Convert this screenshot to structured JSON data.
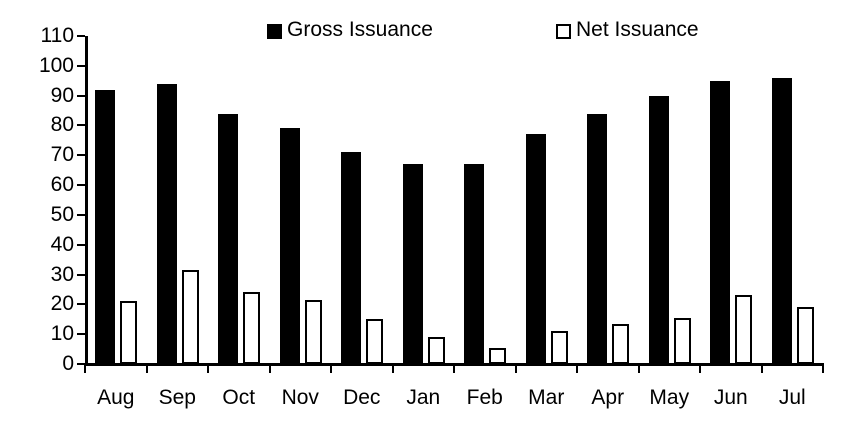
{
  "chart_data": {
    "type": "bar",
    "title": "",
    "xlabel": "",
    "ylabel": "",
    "categories": [
      "Aug",
      "Sep",
      "Oct",
      "Nov",
      "Dec",
      "Jan",
      "Feb",
      "Mar",
      "Apr",
      "May",
      "Jun",
      "Jul"
    ],
    "series": [
      {
        "name": "Gross Issuance",
        "values": [
          92,
          94,
          84,
          79,
          71,
          67,
          67,
          77,
          84,
          90,
          95,
          96
        ],
        "fill": "#000000",
        "stroke": "#000000"
      },
      {
        "name": "Net Issuance",
        "values": [
          21,
          31.5,
          24,
          21.5,
          15,
          9,
          5.5,
          11,
          13.5,
          15.5,
          23,
          19
        ],
        "fill": "#ffffff",
        "stroke": "#000000"
      }
    ],
    "ylim": [
      0,
      110
    ],
    "ytick_step": 10,
    "ytick_labels": [
      "0",
      "10",
      "20",
      "30",
      "40",
      "50",
      "60",
      "70",
      "80",
      "90",
      "100",
      "110"
    ],
    "grid": false,
    "legend_position": "top"
  },
  "legend": {
    "items": [
      {
        "label": "Gross Issuance",
        "swatch": "filled-black-square"
      },
      {
        "label": "Net Issuance",
        "swatch": "outlined-white-square"
      }
    ]
  },
  "colors": {
    "background": "#ffffff",
    "axis": "#000000",
    "gross_bar": "#000000",
    "net_bar_fill": "#ffffff",
    "net_bar_border": "#000000"
  }
}
